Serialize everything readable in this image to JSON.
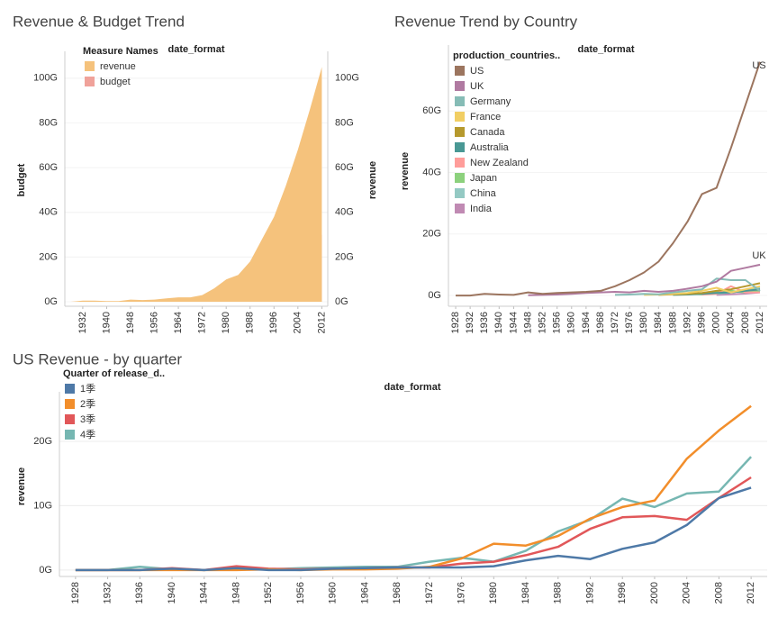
{
  "chart_data": [
    {
      "type": "area",
      "title": "Revenue & Budget Trend",
      "column_header": "date_format",
      "y_label": "budget",
      "y2_label": "revenue",
      "legend_title": "Measure Names",
      "x": [
        1928,
        1932,
        1936,
        1940,
        1944,
        1948,
        1952,
        1956,
        1960,
        1964,
        1968,
        1972,
        1976,
        1980,
        1984,
        1988,
        1992,
        1996,
        2000,
        2004,
        2008,
        2012
      ],
      "xlim": [
        1926,
        2014
      ],
      "xticks": [
        1932,
        1940,
        1948,
        1956,
        1964,
        1972,
        1980,
        1988,
        1996,
        2004,
        2012
      ],
      "ylim": [
        -2,
        110
      ],
      "yticks": [
        {
          "value": 0,
          "label": "0G"
        },
        {
          "value": 20,
          "label": "20G"
        },
        {
          "value": 40,
          "label": "40G"
        },
        {
          "value": 60,
          "label": "60G"
        },
        {
          "value": 80,
          "label": "80G"
        },
        {
          "value": 100,
          "label": "100G"
        }
      ],
      "y2lim": [
        -2,
        110
      ],
      "y2ticks": [
        {
          "value": 0,
          "label": "0G"
        },
        {
          "value": 20,
          "label": "20G"
        },
        {
          "value": 40,
          "label": "40G"
        },
        {
          "value": 60,
          "label": "60G"
        },
        {
          "value": 80,
          "label": "80G"
        },
        {
          "value": 100,
          "label": "100G"
        }
      ],
      "series": [
        {
          "name": "revenue",
          "color": "#f5c27c",
          "axis": "y2",
          "values": [
            0,
            0.5,
            0.5,
            0.3,
            0.3,
            1,
            0.8,
            1,
            1.5,
            2,
            2,
            3,
            6,
            10,
            12,
            18,
            28,
            38,
            52,
            68,
            86,
            105
          ]
        },
        {
          "name": "budget",
          "color": "#f0a29a",
          "values": [
            0,
            0,
            0,
            0,
            0,
            0.2,
            0,
            0,
            0.2,
            0.2,
            0.3,
            0.3,
            0.5,
            1,
            2.5,
            5,
            8,
            16,
            20,
            26,
            30,
            30
          ]
        }
      ]
    },
    {
      "type": "line",
      "title": "Revenue Trend by Country",
      "column_header": "date_format",
      "y_label": "revenue",
      "legend_title": "production_countries..",
      "x": [
        1928,
        1932,
        1936,
        1940,
        1944,
        1948,
        1952,
        1956,
        1960,
        1964,
        1968,
        1972,
        1976,
        1980,
        1984,
        1988,
        1992,
        1996,
        2000,
        2004,
        2008,
        2012
      ],
      "xlim": [
        1926,
        2014
      ],
      "xticks": [
        1928,
        1932,
        1936,
        1940,
        1944,
        1948,
        1952,
        1956,
        1960,
        1964,
        1968,
        1972,
        1976,
        1980,
        1984,
        1988,
        1992,
        1996,
        2000,
        2004,
        2008,
        2012
      ],
      "ylim": [
        -3.5,
        80
      ],
      "yticks": [
        {
          "value": 0,
          "label": "0G"
        },
        {
          "value": 20,
          "label": "20G"
        },
        {
          "value": 40,
          "label": "40G"
        },
        {
          "value": 60,
          "label": "60G"
        }
      ],
      "series": [
        {
          "name": "US",
          "color": "#9c755f",
          "values": [
            0,
            0,
            0.5,
            0.3,
            0.2,
            1,
            0.5,
            0.8,
            1,
            1.2,
            1.5,
            3,
            5,
            7.5,
            11,
            17,
            24,
            33,
            35,
            48,
            62,
            76
          ]
        },
        {
          "name": "UK",
          "color": "#b07aa1",
          "values": [
            null,
            null,
            null,
            null,
            null,
            0.1,
            0.2,
            0.3,
            0.5,
            0.8,
            1,
            1.2,
            1,
            1.5,
            1.2,
            1.5,
            2.2,
            3,
            4.5,
            8,
            9,
            10
          ]
        },
        {
          "name": "Germany",
          "color": "#86bcb6",
          "values": [
            null,
            null,
            null,
            null,
            null,
            null,
            null,
            null,
            null,
            null,
            null,
            0.2,
            0.3,
            0.5,
            0.4,
            1,
            1.5,
            2,
            5.5,
            5,
            5,
            1.5
          ]
        },
        {
          "name": "France",
          "color": "#f1ce63",
          "values": [
            null,
            null,
            null,
            null,
            null,
            null,
            null,
            null,
            null,
            null,
            null,
            null,
            null,
            0.2,
            0.3,
            0.5,
            0.8,
            1.5,
            2.5,
            1,
            2,
            3
          ]
        },
        {
          "name": "Canada",
          "color": "#b6992d",
          "values": [
            null,
            null,
            null,
            null,
            null,
            null,
            null,
            null,
            null,
            null,
            null,
            null,
            null,
            null,
            0.2,
            0.4,
            0.5,
            0.8,
            1.5,
            2,
            3,
            4
          ]
        },
        {
          "name": "Australia",
          "color": "#499894",
          "values": [
            null,
            null,
            null,
            null,
            null,
            null,
            null,
            null,
            null,
            null,
            null,
            null,
            null,
            null,
            null,
            0.2,
            0.3,
            0.5,
            0.8,
            1,
            1.5,
            2
          ]
        },
        {
          "name": "New Zealand",
          "color": "#ff9d9a",
          "values": [
            null,
            null,
            null,
            null,
            null,
            null,
            null,
            null,
            null,
            null,
            null,
            null,
            null,
            null,
            null,
            null,
            null,
            0.3,
            0.5,
            3,
            1,
            1
          ]
        },
        {
          "name": "Japan",
          "color": "#8cd17d",
          "values": [
            null,
            null,
            null,
            null,
            null,
            null,
            null,
            null,
            null,
            null,
            null,
            null,
            null,
            null,
            null,
            null,
            0.5,
            0.4,
            1,
            1.5,
            1,
            1.5
          ]
        },
        {
          "name": "China",
          "color": "#94c9c3",
          "values": [
            null,
            null,
            null,
            null,
            null,
            null,
            null,
            null,
            null,
            null,
            null,
            null,
            null,
            null,
            null,
            null,
            null,
            null,
            0.5,
            1,
            1.5,
            2.5
          ]
        },
        {
          "name": "India",
          "color": "#c08ab3",
          "values": [
            null,
            null,
            null,
            null,
            null,
            null,
            null,
            null,
            null,
            null,
            null,
            null,
            null,
            null,
            null,
            null,
            null,
            null,
            0.2,
            0.4,
            0.6,
            1
          ]
        }
      ]
    },
    {
      "type": "line",
      "title": "US Revenue - by quarter",
      "column_header": "date_format",
      "y_label": "revenue",
      "legend_title": "Quarter of release_d..",
      "grid": true,
      "x": [
        1928,
        1932,
        1936,
        1940,
        1944,
        1948,
        1952,
        1956,
        1960,
        1964,
        1968,
        1972,
        1976,
        1980,
        1984,
        1988,
        1992,
        1996,
        2000,
        2004,
        2008,
        2012
      ],
      "xlim": [
        1926,
        2014
      ],
      "xticks": [
        1928,
        1932,
        1936,
        1940,
        1944,
        1948,
        1952,
        1956,
        1960,
        1964,
        1968,
        1972,
        1976,
        1980,
        1984,
        1988,
        1992,
        1996,
        2000,
        2004,
        2008,
        2012
      ],
      "ylim": [
        -1,
        27
      ],
      "yticks": [
        {
          "value": 0,
          "label": "0G"
        },
        {
          "value": 10,
          "label": "10G"
        },
        {
          "value": 20,
          "label": "20G"
        }
      ],
      "series": [
        {
          "name": "1季",
          "color": "#4e79a7",
          "values": [
            0,
            0,
            0,
            0.2,
            0,
            0.3,
            0,
            0,
            0.2,
            0.3,
            0.4,
            0.4,
            0.4,
            0.6,
            1.5,
            2.2,
            1.7,
            3.3,
            4.3,
            7,
            11.2,
            12.8
          ]
        },
        {
          "name": "2季",
          "color": "#f28e2b",
          "values": [
            0,
            0,
            0,
            0,
            0,
            0,
            0.1,
            0,
            0.1,
            0.1,
            0.2,
            0.5,
            1.8,
            4.1,
            3.8,
            5.3,
            8,
            9.8,
            10.8,
            17.3,
            21.7,
            25.5
          ]
        },
        {
          "name": "3季",
          "color": "#e15759",
          "values": [
            0,
            0,
            0,
            0.3,
            0,
            0.6,
            0.2,
            0.1,
            0.2,
            0.3,
            0.4,
            0.4,
            1,
            1.3,
            2.3,
            3.6,
            6.4,
            8.2,
            8.4,
            7.8,
            11.2,
            14.4
          ]
        },
        {
          "name": "4季",
          "color": "#76b7b2",
          "values": [
            0,
            0,
            0.5,
            0.1,
            0,
            0.2,
            0.1,
            0.3,
            0.4,
            0.5,
            0.5,
            1.3,
            1.9,
            1.3,
            3,
            6,
            7.8,
            11.1,
            9.8,
            11.9,
            12.2,
            17.6
          ]
        }
      ]
    }
  ]
}
